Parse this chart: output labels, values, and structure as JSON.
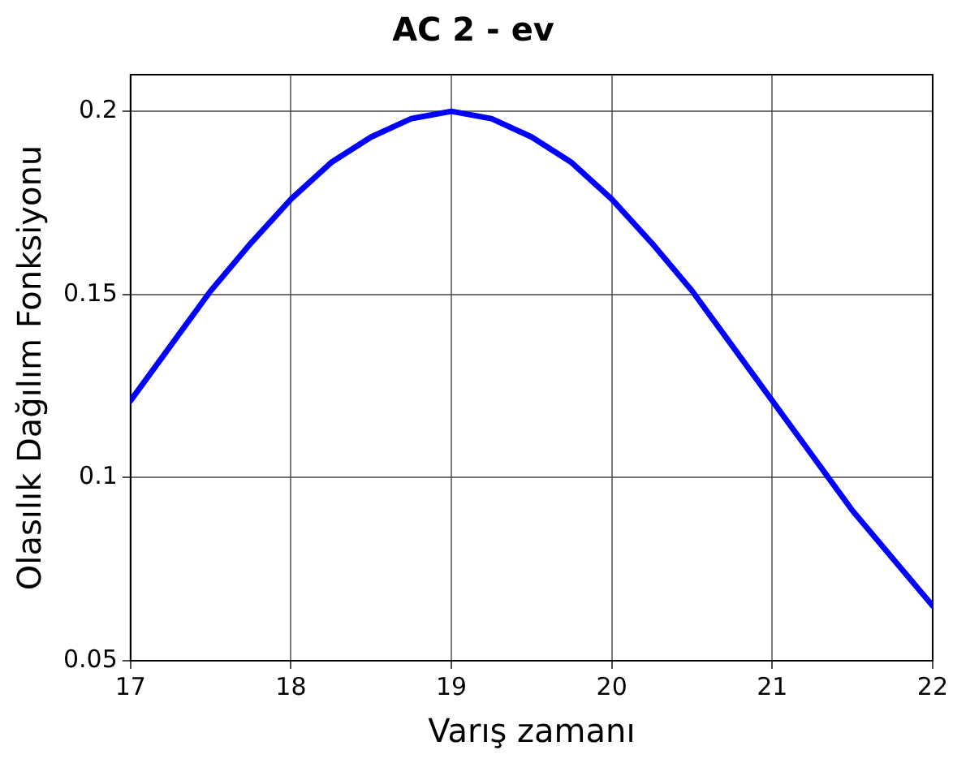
{
  "chart_data": {
    "type": "line",
    "title": "AC 2 - ev",
    "xlabel": "Varış zamanı",
    "ylabel": "Olasılık Dağılım Fonksiyonu",
    "x": [
      17,
      17.25,
      17.5,
      17.75,
      18,
      18.25,
      18.5,
      18.75,
      19,
      19.25,
      19.5,
      19.75,
      20,
      20.25,
      20.5,
      20.75,
      21,
      21.25,
      21.5,
      21.75,
      22
    ],
    "series": [
      {
        "color": "#0000ff",
        "values": [
          0.121,
          0.136,
          0.151,
          0.164,
          0.176,
          0.186,
          0.193,
          0.198,
          0.2,
          0.198,
          0.193,
          0.186,
          0.176,
          0.164,
          0.151,
          0.136,
          0.121,
          0.106,
          0.091,
          0.078,
          0.065
        ]
      }
    ],
    "xlim": [
      17,
      22
    ],
    "xticks": [
      17,
      18,
      19,
      20,
      21,
      22
    ],
    "ylim": [
      0.05,
      0.21
    ],
    "yticks": [
      0.05,
      0.1,
      0.15,
      0.2
    ],
    "grid": true,
    "legend": false,
    "marker": "none",
    "line_style": "solid"
  }
}
